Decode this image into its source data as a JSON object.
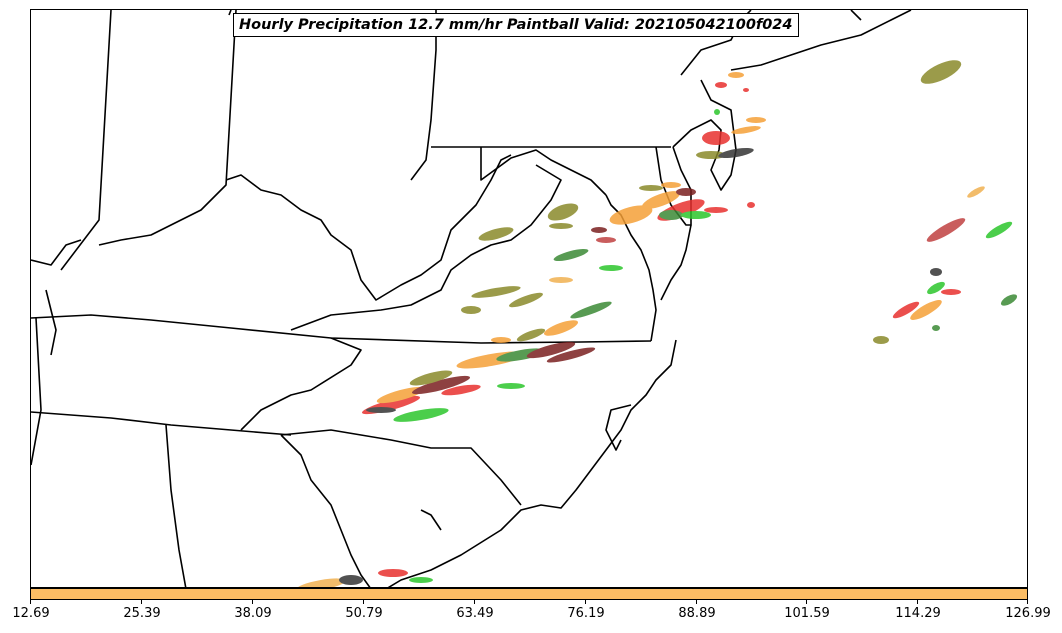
{
  "title": "Hourly Precipitation 12.7 mm/hr Paintball Valid: 202105042100f024",
  "colorbar": {
    "color": "#fcbd64",
    "ticks": [
      "12.69",
      "25.39",
      "38.09",
      "50.79",
      "63.49",
      "76.19",
      "88.89",
      "101.59",
      "114.29",
      "126.99"
    ]
  },
  "member_colors": [
    "#e8302e",
    "#f5a037",
    "#2bc62b",
    "#8a8a2a",
    "#3a8a34",
    "#7a1f1f",
    "#333333",
    "#c04040",
    "#f0b050"
  ]
}
